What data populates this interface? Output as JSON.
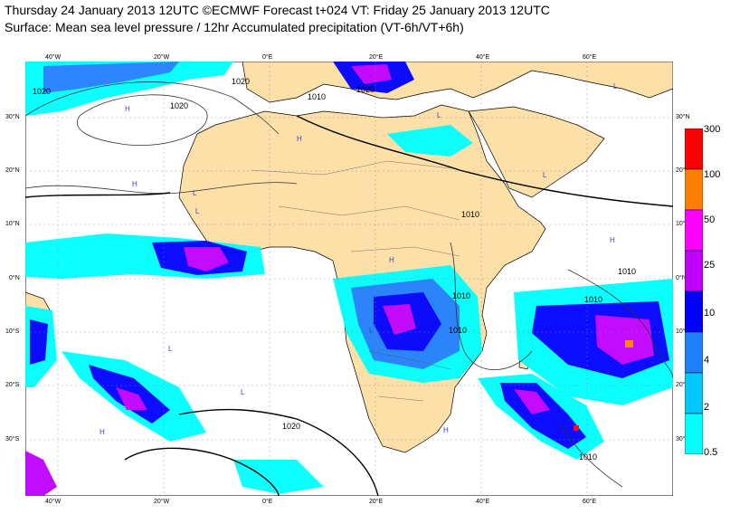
{
  "header": {
    "line1": "Thursday 24 January 2013 12UTC ©ECMWF Forecast t+024 VT: Friday 25 January 2013 12UTC",
    "line2": "Surface: Mean sea level pressure / 12hr Accumulated precipitation (VT-6h/VT+6h)"
  },
  "axes": {
    "lon_ticks": [
      "40°W",
      "20°W",
      "0°E",
      "20°E",
      "40°E",
      "60°E"
    ],
    "lat_ticks": [
      "30°N",
      "20°N",
      "10°N",
      "0°N",
      "10°S",
      "20°S",
      "30°S"
    ]
  },
  "isobar_labels": [
    "1020",
    "1020",
    "1010",
    "1020",
    "1020",
    "1010",
    "1010",
    "1010",
    "1010",
    "1020",
    "1010",
    "1010"
  ],
  "pressure_centres": [
    "H",
    "H",
    "H",
    "L",
    "L",
    "L",
    "L",
    "L",
    "H",
    "H",
    "L",
    "L",
    "H",
    "H",
    "L"
  ],
  "legend": {
    "levels": [
      "300",
      "100",
      "50",
      "25",
      "10",
      "4",
      "2",
      "0.5"
    ],
    "colors": [
      "#ff0000",
      "#ff8000",
      "#ff00ff",
      "#c000ff",
      "#0000ff",
      "#2080ff",
      "#00c8ff",
      "#00ffff"
    ]
  },
  "colors": {
    "land": "#fce0a8",
    "ocean": "#ffffff"
  }
}
